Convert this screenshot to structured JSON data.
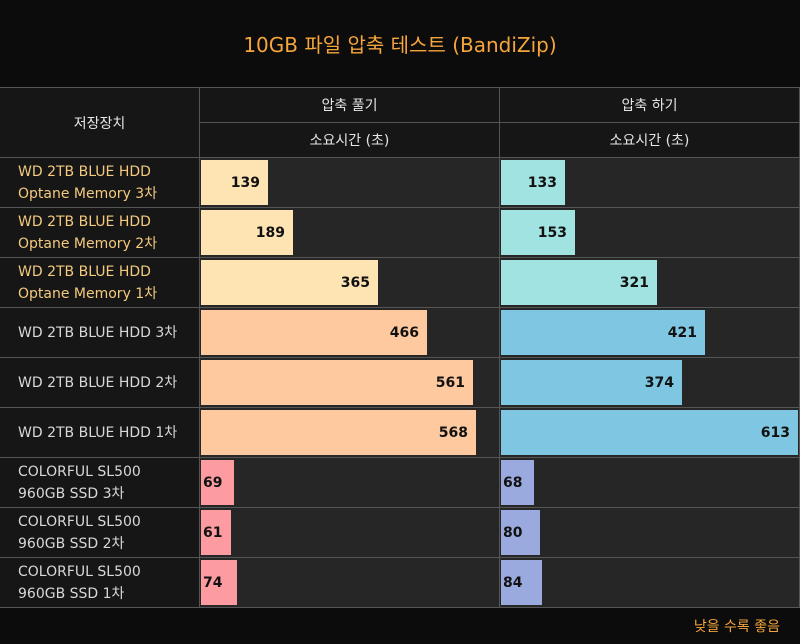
{
  "title": "10GB 파일 압축 테스트 (BandiZip)",
  "header": {
    "device_col": "저장장치",
    "groups": [
      "압축 풀기",
      "압축 하기"
    ],
    "subheaders": [
      "소요시간 (초)",
      "소요시간 (초)"
    ]
  },
  "footer_note": "낮을 수록 좋음",
  "colors": {
    "title": "#f5a53c",
    "decompress_optane": "#fee4b3",
    "decompress_hdd": "#fec99e",
    "decompress_ssd": "#fc9ca1",
    "compress_optane": "#a0e3e0",
    "compress_hdd": "#7ec6e1",
    "compress_ssd": "#9aaadf"
  },
  "chart_data": {
    "type": "bar",
    "orientation": "horizontal",
    "title": "10GB 파일 압축 테스트 (BandiZip)",
    "unit": "소요시간 (초)",
    "categories": [
      [
        "WD 2TB BLUE HDD",
        "Optane Memory 3차"
      ],
      [
        "WD 2TB BLUE HDD",
        "Optane Memory 2차"
      ],
      [
        "WD 2TB BLUE HDD",
        "Optane Memory 1차"
      ],
      [
        "WD 2TB BLUE HDD 3차"
      ],
      [
        "WD 2TB BLUE HDD 2차"
      ],
      [
        "WD 2TB BLUE HDD 1차"
      ],
      [
        "COLORFUL SL500",
        "960GB SSD 3차"
      ],
      [
        "COLORFUL SL500",
        "960GB SSD 2차"
      ],
      [
        "COLORFUL SL500",
        "960GB SSD 1차"
      ]
    ],
    "groups": [
      "optane",
      "optane",
      "optane",
      "hdd",
      "hdd",
      "hdd",
      "ssd",
      "ssd",
      "ssd"
    ],
    "series": [
      {
        "name": "압축 풀기",
        "values": [
          139,
          189,
          365,
          466,
          561,
          568,
          69,
          61,
          74
        ]
      },
      {
        "name": "압축 하기",
        "values": [
          133,
          153,
          321,
          421,
          374,
          613,
          68,
          80,
          84
        ]
      }
    ],
    "xlim": [
      0,
      613
    ]
  }
}
